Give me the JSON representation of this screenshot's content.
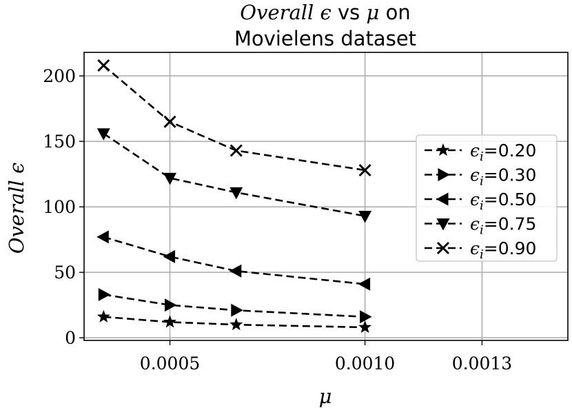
{
  "chart_data": {
    "type": "line",
    "title_line1_prefix": "Overall ϵ",
    "title_line1_suffix": "vs",
    "title_line1_mu": "μ",
    "title_line1_end": "on",
    "title_line2": "Movielens dataset",
    "xlabel": "μ",
    "ylabel": "Overall ϵ",
    "xlim": [
      0.00028,
      0.00152
    ],
    "ylim": [
      -2,
      218
    ],
    "x_ticks": [
      0.0005,
      0.001,
      0.0013
    ],
    "x_tick_labels": [
      "0.0005",
      "0.0010",
      "0.0013"
    ],
    "y_ticks": [
      0,
      50,
      100,
      150,
      200
    ],
    "y_tick_labels": [
      "0",
      "50",
      "100",
      "150",
      "200"
    ],
    "grid": true,
    "legend_position": "right",
    "line_style": "dashed",
    "color": "#000000",
    "x": [
      0.00033,
      0.0005,
      0.00067,
      0.001
    ],
    "series": [
      {
        "legend_prefix": "ϵ",
        "legend_sub": "i",
        "legend_value": "=0.20",
        "marker": "star",
        "values": [
          16,
          12,
          10,
          8
        ]
      },
      {
        "legend_prefix": "ϵ",
        "legend_sub": "i",
        "legend_value": "=0.30",
        "marker": "triangle-right",
        "values": [
          33,
          25,
          21,
          16
        ]
      },
      {
        "legend_prefix": "ϵ",
        "legend_sub": "i",
        "legend_value": "=0.50",
        "marker": "triangle-left",
        "values": [
          77,
          62,
          51,
          41
        ]
      },
      {
        "legend_prefix": "ϵ",
        "legend_sub": "i",
        "legend_value": "=0.75",
        "marker": "triangle-down",
        "values": [
          156,
          122,
          111,
          93
        ]
      },
      {
        "legend_prefix": "ϵ",
        "legend_sub": "i",
        "legend_value": "=0.90",
        "marker": "x",
        "values": [
          208,
          165,
          143,
          128
        ]
      }
    ]
  }
}
